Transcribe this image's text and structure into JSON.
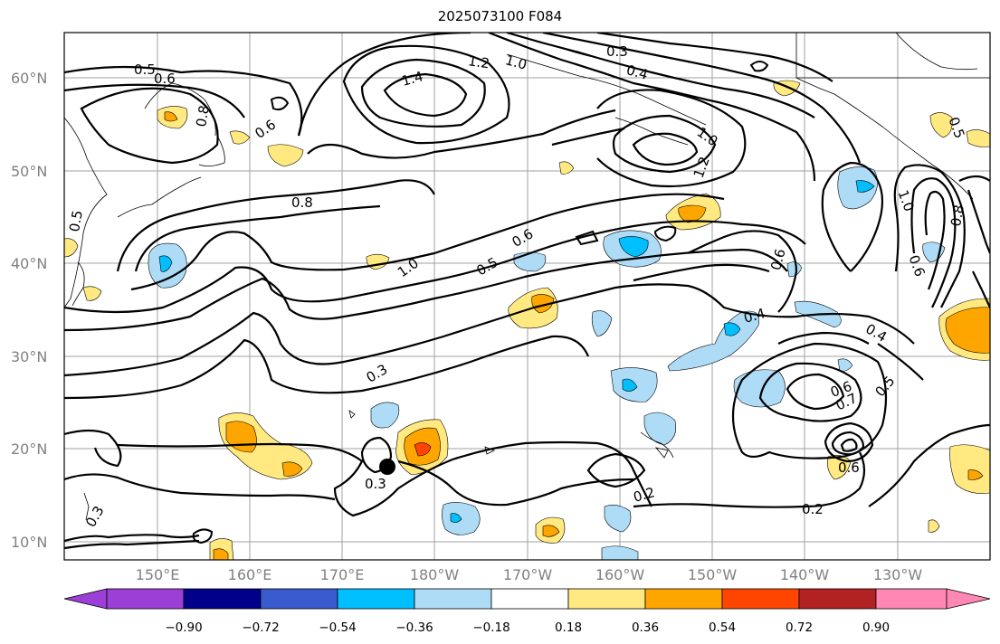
{
  "title": "2025073100 F084",
  "lat_ticks": [
    "60°N",
    "50°N",
    "40°N",
    "30°N",
    "20°N",
    "10°N"
  ],
  "lon_ticks": [
    "150°E",
    "160°E",
    "170°E",
    "180°W",
    "170°W",
    "160°W",
    "150°W",
    "140°W",
    "130°W"
  ],
  "contour_labels": [
    "0.5",
    "0.6",
    "0.8",
    "0.6",
    "1.4",
    "1.2",
    "1.0",
    "0.3",
    "0.4",
    "1.0",
    "1.2",
    "0.8",
    "1.0",
    "0.6",
    "0.5",
    "0.6",
    "0.4",
    "0.3",
    "0.4",
    "0.5",
    "0.6",
    "0.7",
    "0.6",
    "0.2",
    "0.2",
    "0.3",
    "0.3",
    "0.5",
    "1.0",
    "0.8",
    "0.6",
    "0.5"
  ],
  "colorbar": {
    "labels": [
      "−0.90",
      "−0.72",
      "−0.54",
      "−0.36",
      "−0.18",
      "0.18",
      "0.36",
      "0.54",
      "0.72",
      "0.90"
    ],
    "colors": [
      "#9b3fd6",
      "#00008b",
      "#3a5bd0",
      "#00bfff",
      "#aedcf7",
      "#ffffff",
      "#ffe980",
      "#ffa500",
      "#ff4500",
      "#b22222",
      "#ff87b4"
    ]
  },
  "fill_colors": {
    "light_blue": "#aedcf7",
    "blue": "#00bfff",
    "yellow": "#ffe980",
    "orange": "#ffa500",
    "red": "#ff4500"
  }
}
